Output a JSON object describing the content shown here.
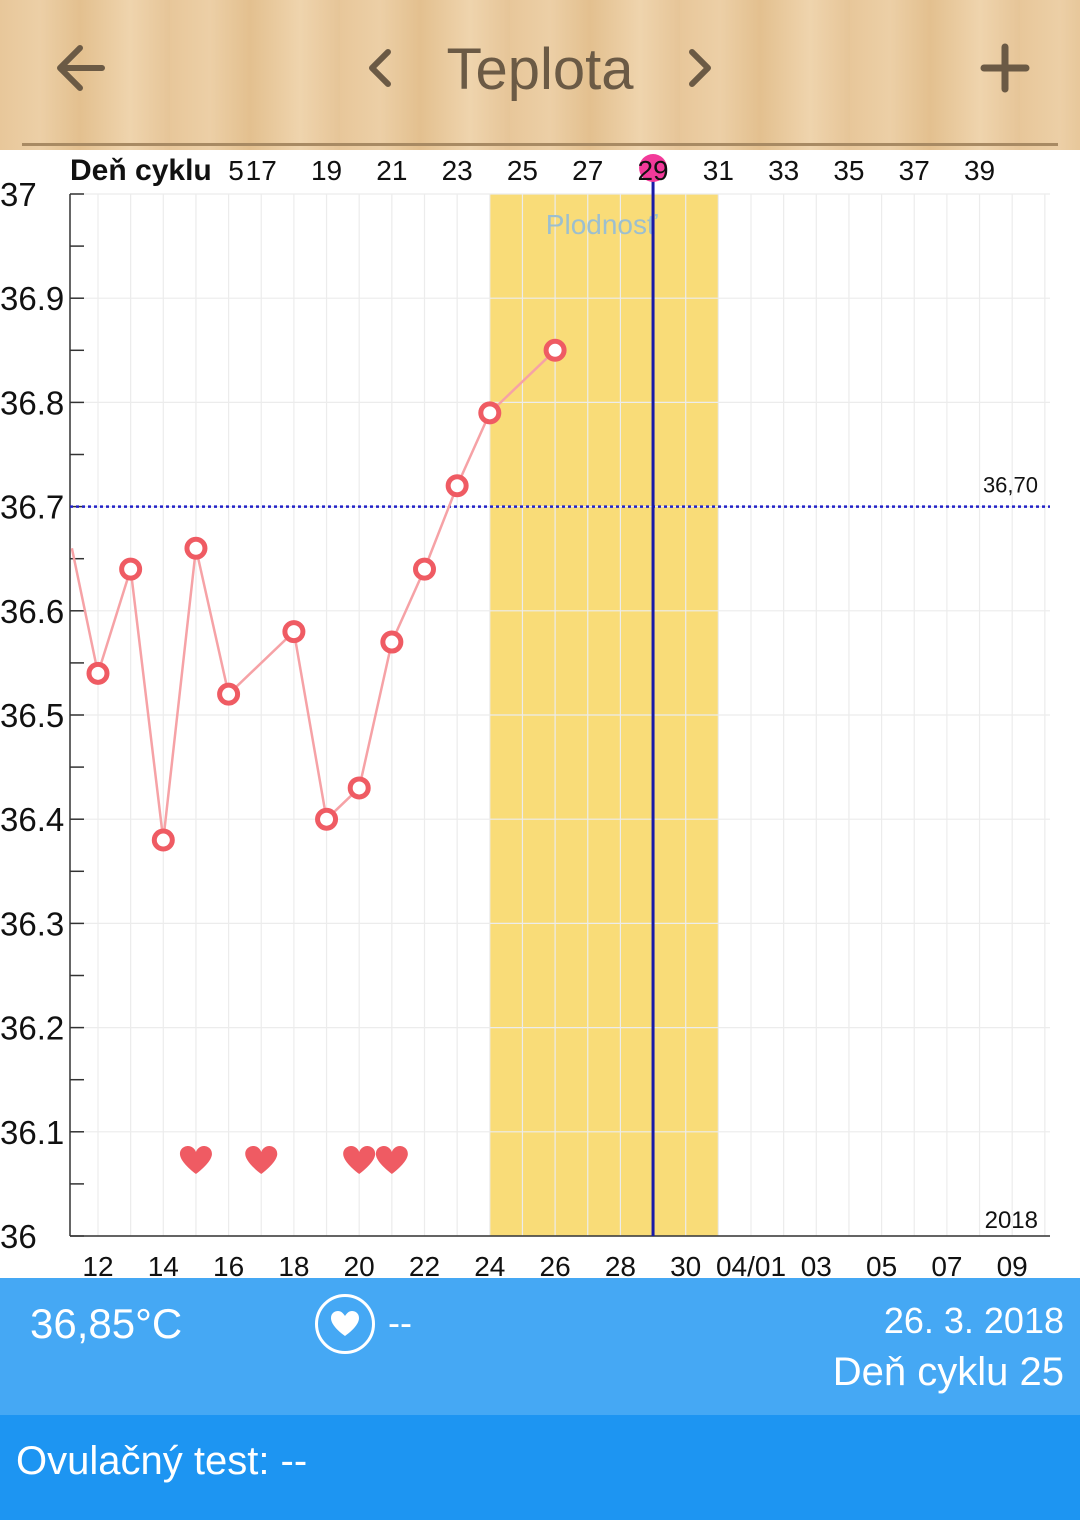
{
  "header": {
    "title": "Teplota",
    "back_icon": "arrow-left-icon",
    "prev_icon": "chevron-left-icon",
    "next_icon": "chevron-right-icon",
    "add_icon": "plus-icon"
  },
  "chart_data": {
    "type": "line",
    "top_axis_label": "Deň cyklu",
    "top_ticks": [
      "5",
      "17",
      "19",
      "21",
      "23",
      "25",
      "27",
      "29",
      "31",
      "33",
      "35",
      "37",
      "39"
    ],
    "bottom_ticks": [
      "12",
      "14",
      "16",
      "18",
      "20",
      "22",
      "24",
      "26",
      "28",
      "30",
      "04/01",
      "03",
      "05",
      "07",
      "09"
    ],
    "y_ticks": [
      "37",
      "36.9",
      "36.8",
      "36.7",
      "36.6",
      "36.5",
      "36.4",
      "36.3",
      "36.2",
      "36.1",
      "36"
    ],
    "ylim": [
      36.0,
      37.0
    ],
    "x_range_days": [
      11.2,
      41.2
    ],
    "series": [
      {
        "values": [
          {
            "day": 11.2,
            "temp": 36.66
          },
          {
            "day": 12,
            "temp": 36.54
          },
          {
            "day": 13,
            "temp": 36.64
          },
          {
            "day": 14,
            "temp": 36.38
          },
          {
            "day": 15,
            "temp": 36.66
          },
          {
            "day": 16,
            "temp": 36.52
          },
          {
            "day": 18,
            "temp": 36.58
          },
          {
            "day": 19,
            "temp": 36.4
          },
          {
            "day": 20,
            "temp": 36.43
          },
          {
            "day": 21,
            "temp": 36.57
          },
          {
            "day": 22,
            "temp": 36.64
          },
          {
            "day": 23,
            "temp": 36.72
          },
          {
            "day": 24,
            "temp": 36.79
          },
          {
            "day": 26,
            "temp": 36.85
          }
        ]
      }
    ],
    "threshold": {
      "value": 36.7,
      "label": "36,70"
    },
    "fertility": {
      "label": "Plodnosť",
      "start_day": 24,
      "end_day": 31
    },
    "current_day": 29,
    "intercourse_days": [
      15,
      17,
      20,
      21
    ],
    "year_label": "2018",
    "colors": {
      "line": "#f6a2a6",
      "point": "#ef5b63",
      "fertility": "#f9dc78",
      "threshold": "#2323c8",
      "current": "#1a1aa8",
      "marker": "#f23a9a",
      "heart": "#ef5b63"
    }
  },
  "info": {
    "temperature": "36,85°C",
    "sex_icon": "heart-circle-icon",
    "sex_value": "--",
    "date": "26. 3. 2018",
    "cycle_day": "Deň cyklu 25"
  },
  "ovulation": {
    "text": "Ovulačný test: --"
  }
}
